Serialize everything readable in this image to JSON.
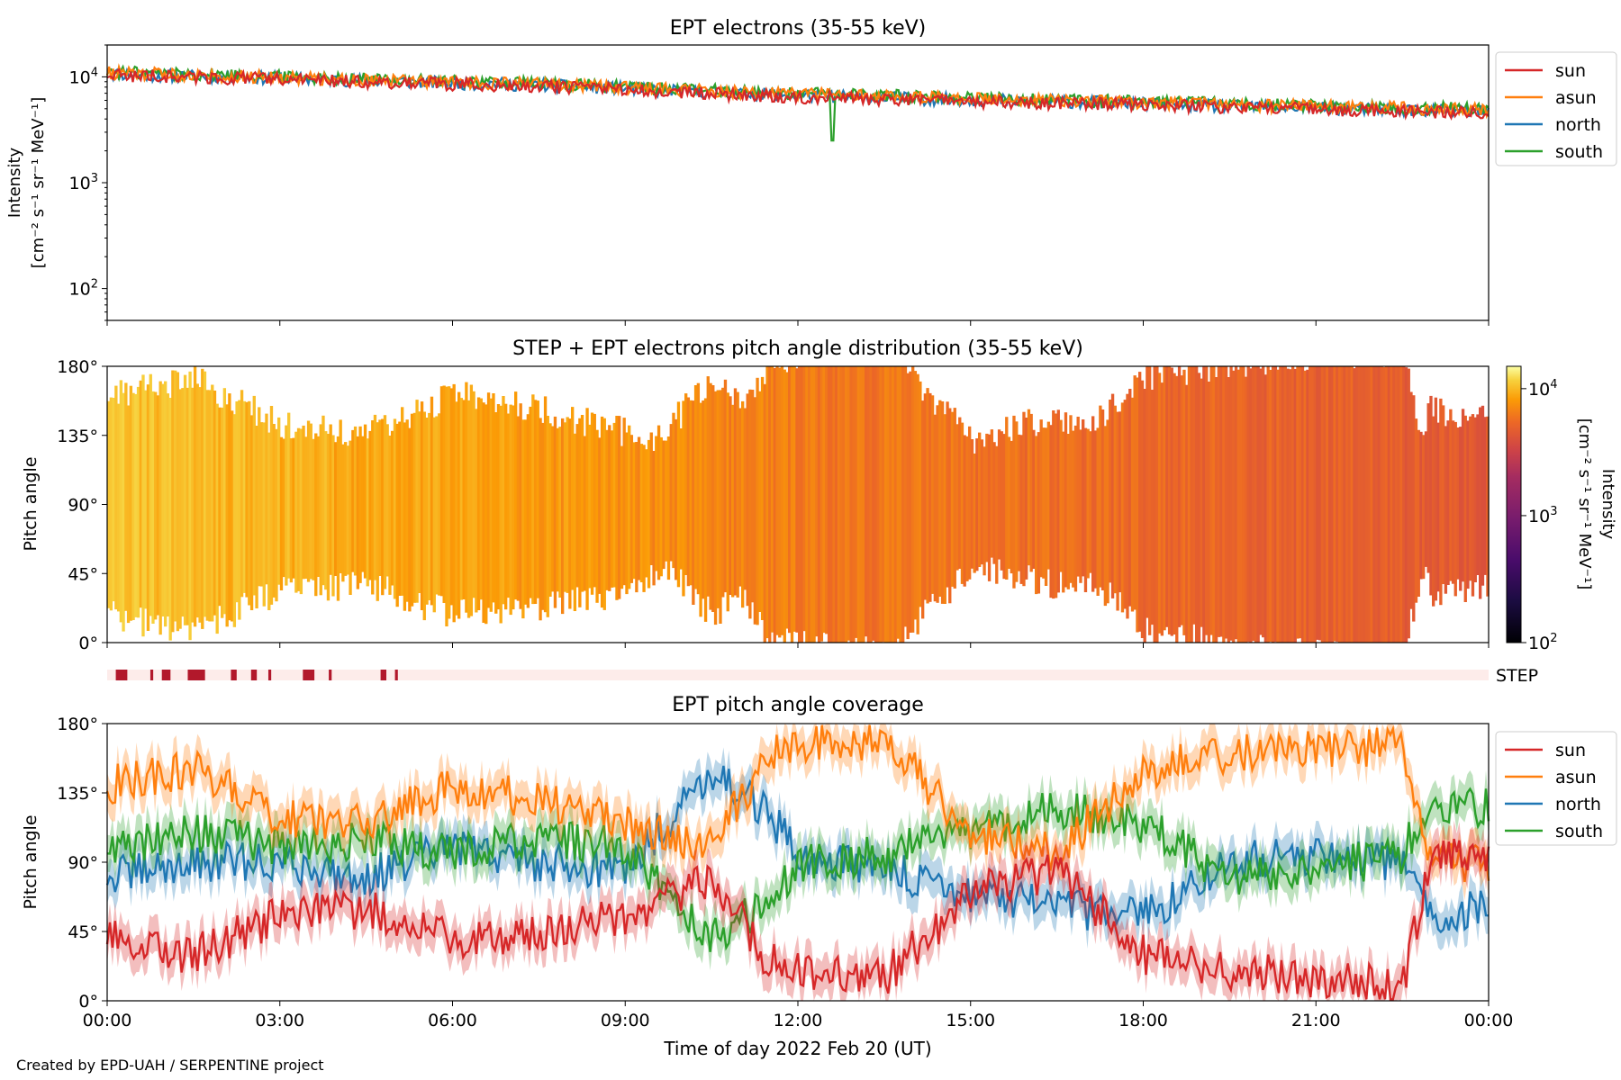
{
  "figure": {
    "credit": "Created by EPD-UAH / SERPENTINE project",
    "xlabel": "Time of day 2022 Feb 20 (UT)",
    "xticks": [
      "00:00",
      "03:00",
      "06:00",
      "09:00",
      "12:00",
      "15:00",
      "18:00",
      "21:00",
      "00:00"
    ],
    "pitch_ticks": [
      "0°",
      "45°",
      "90°",
      "135°",
      "180°"
    ],
    "pitch_ylabel": "Pitch angle"
  },
  "colors": {
    "sun": "#d62728",
    "asun": "#ff7f0e",
    "north": "#1f77b4",
    "south": "#2ca02c",
    "step_bar": "#fdecea",
    "step_mark": "#b2182b"
  },
  "chart_data": [
    {
      "type": "line",
      "title": "EPT electrons (35-55 keV)",
      "ylabel_line1": "Intensity",
      "ylabel_line2": "[cm⁻² s⁻¹ sr⁻¹ MeV⁻¹]",
      "yscale": "log",
      "ylim": [
        50,
        20000
      ],
      "yticks": [
        {
          "value": 100,
          "label": "10",
          "exp": "2"
        },
        {
          "value": 1000,
          "label": "10",
          "exp": "3"
        },
        {
          "value": 10000,
          "label": "10",
          "exp": "4"
        }
      ],
      "x_hours": [
        0,
        1.5,
        3,
        4.5,
        6,
        7.5,
        9,
        10.5,
        12,
        13.5,
        15,
        16.5,
        18,
        19.5,
        21,
        22.5,
        24
      ],
      "series": [
        {
          "name": "sun",
          "values": [
            10500,
            10000,
            9600,
            9000,
            8600,
            8200,
            7600,
            7000,
            6500,
            6200,
            5900,
            5700,
            5500,
            5200,
            5000,
            4800,
            4500
          ]
        },
        {
          "name": "asun",
          "values": [
            11000,
            10500,
            10000,
            9400,
            9000,
            8600,
            8000,
            7400,
            6900,
            6600,
            6300,
            6000,
            5800,
            5500,
            5300,
            5100,
            4900
          ]
        },
        {
          "name": "north",
          "values": [
            10700,
            10200,
            9800,
            9300,
            8800,
            8400,
            7800,
            7200,
            6700,
            6400,
            6100,
            5900,
            5600,
            5300,
            5100,
            4900,
            4700
          ]
        },
        {
          "name": "south",
          "values": [
            11200,
            10700,
            10200,
            9600,
            9100,
            8700,
            8100,
            7500,
            7000,
            6700,
            6400,
            6100,
            5900,
            5600,
            5400,
            5200,
            5000
          ]
        }
      ],
      "annotations": [
        {
          "series": "south",
          "x_hour": 12.6,
          "value": 2500,
          "note": "dip"
        }
      ],
      "legend": "outside-top-right",
      "grid": false
    },
    {
      "type": "heatmap",
      "title": "STEP + EPT electrons pitch angle distribution (35-55 keV)",
      "ylabel": "Pitch angle",
      "ylim": [
        0,
        180
      ],
      "xlim_hours": [
        0,
        24
      ],
      "colorbar": {
        "label_line1": "Intensity",
        "label_line2": "[cm⁻² s⁻¹ sr⁻¹ MeV⁻¹]",
        "scale": "log",
        "range": [
          100,
          15000
        ],
        "ticks": [
          {
            "value": 100,
            "label": "10",
            "exp": "2"
          },
          {
            "value": 1000,
            "label": "10",
            "exp": "3"
          },
          {
            "value": 10000,
            "label": "10",
            "exp": "4"
          }
        ],
        "colormap": "inferno"
      },
      "x_hours": [
        0,
        1.5,
        3,
        4.5,
        6,
        7.5,
        9,
        10.5,
        12,
        13.5,
        15,
        16.5,
        18,
        19.5,
        21,
        22.5,
        24
      ],
      "intensity": [
        10500,
        10000,
        9600,
        9000,
        8600,
        8200,
        7600,
        7000,
        6500,
        6200,
        5900,
        5700,
        5500,
        5200,
        5000,
        4800,
        4500
      ],
      "grid": false
    },
    {
      "type": "bar",
      "label": "STEP",
      "description_of_marks": "STEP data availability",
      "intervals_hours": [
        [
          0.15,
          0.35
        ],
        [
          0.75,
          0.8
        ],
        [
          0.95,
          1.1
        ],
        [
          1.4,
          1.7
        ],
        [
          2.15,
          2.25
        ],
        [
          2.5,
          2.6
        ],
        [
          2.8,
          2.85
        ],
        [
          3.4,
          3.6
        ],
        [
          3.85,
          3.9
        ],
        [
          4.75,
          4.85
        ],
        [
          5.0,
          5.05
        ]
      ]
    },
    {
      "type": "line",
      "title": "EPT pitch angle coverage",
      "ylabel": "Pitch angle",
      "ylim": [
        0,
        180
      ],
      "x_hours": [
        0,
        1.5,
        3,
        4.5,
        6,
        7.5,
        9,
        10.5,
        11.5,
        12,
        13.5,
        15,
        16.5,
        18,
        19.5,
        21,
        22.5,
        23,
        24
      ],
      "series": [
        {
          "name": "sun",
          "values": [
            40,
            30,
            55,
            60,
            40,
            45,
            55,
            80,
            25,
            20,
            15,
            70,
            85,
            30,
            20,
            15,
            8,
            95,
            90
          ]
        },
        {
          "name": "asun",
          "values": [
            140,
            150,
            120,
            115,
            140,
            130,
            115,
            100,
            160,
            165,
            170,
            110,
            95,
            150,
            160,
            165,
            165,
            90,
            90
          ]
        },
        {
          "name": "north",
          "values": [
            80,
            90,
            90,
            80,
            100,
            90,
            85,
            150,
            120,
            95,
            85,
            70,
            60,
            55,
            90,
            95,
            90,
            55,
            60
          ]
        },
        {
          "name": "south",
          "values": [
            100,
            110,
            100,
            105,
            95,
            105,
            100,
            40,
            65,
            90,
            95,
            110,
            125,
            115,
            80,
            85,
            95,
            130,
            125
          ]
        }
      ],
      "uncertainty_band": true,
      "legend": "outside-top-right",
      "grid": false
    }
  ]
}
